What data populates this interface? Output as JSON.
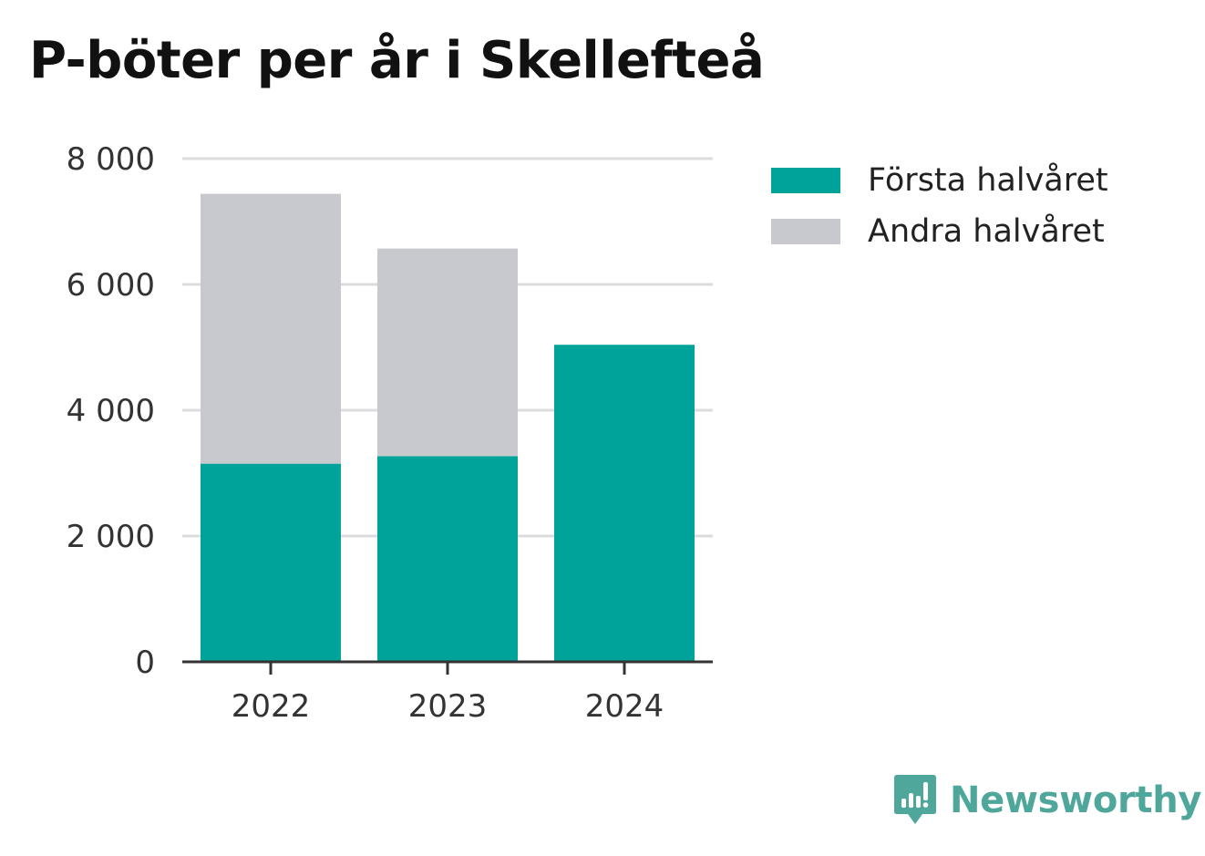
{
  "title": "P-böter per år i Skellefteå",
  "colors": {
    "series_first": "#00a39a",
    "series_second": "#c8c8cf",
    "grid": "#dcdcdf",
    "axis": "#333333",
    "brand": "#4ea79a"
  },
  "legend": [
    {
      "label": "Första halvåret",
      "color": "#00a39a"
    },
    {
      "label": "Andra halvåret",
      "color": "#c8c8cf"
    }
  ],
  "brand": {
    "name": "Newsworthy",
    "icon": "newsworthy-logo-icon"
  },
  "chart_data": {
    "type": "bar",
    "stacked": true,
    "title": "P-böter per år i Skellefteå",
    "xlabel": "",
    "ylabel": "",
    "categories": [
      "2022",
      "2023",
      "2024"
    ],
    "series": [
      {
        "name": "Första halvåret",
        "values": [
          3150,
          3270,
          5040
        ]
      },
      {
        "name": "Andra halvåret",
        "values": [
          4290,
          3300,
          0
        ]
      }
    ],
    "ylim": [
      0,
      8000
    ],
    "yticks": [
      0,
      2000,
      4000,
      6000,
      8000
    ],
    "ytick_labels": [
      "0",
      "2 000",
      "4 000",
      "6 000",
      "8 000"
    ],
    "grid": true,
    "legend_position": "right"
  }
}
